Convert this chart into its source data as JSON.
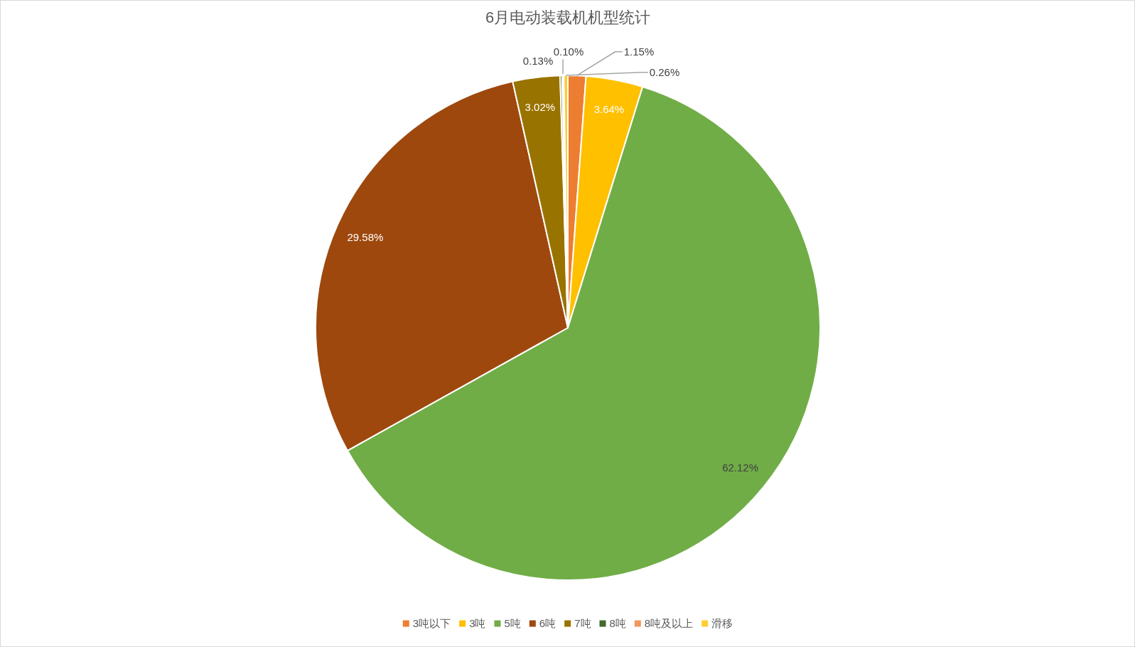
{
  "chart_data": {
    "type": "pie",
    "title": "6月电动装载机机型统计",
    "categories": [
      "3吨以下",
      "3吨",
      "5吨",
      "6吨",
      "7吨",
      "8吨",
      "8吨及以上",
      "滑移"
    ],
    "values": [
      1.15,
      3.64,
      62.12,
      29.58,
      3.02,
      0.13,
      0.1,
      0.26
    ],
    "colors": [
      "#ed7d31",
      "#ffc000",
      "#70ad47",
      "#9e480e",
      "#997300",
      "#43682b",
      "#f1975a",
      "#ffcd33"
    ],
    "value_labels": [
      "1.15%",
      "3.64%",
      "62.12%",
      "29.58%",
      "3.02%",
      "0.13%",
      "0.10%",
      "0.26%"
    ],
    "legend": "bottom"
  }
}
